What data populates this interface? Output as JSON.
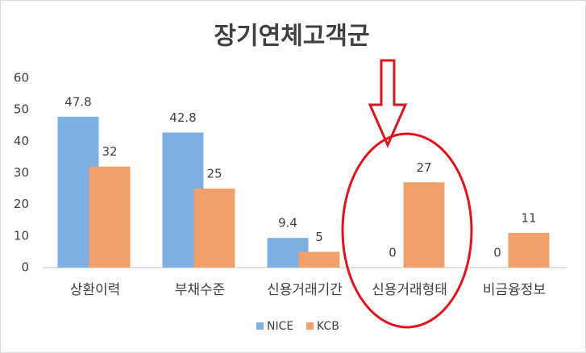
{
  "chart_data": {
    "type": "bar",
    "title": "장기연체고객군",
    "categories": [
      "상환이력",
      "부채수준",
      "신용거래기간",
      "신용거래형태",
      "비금융정보"
    ],
    "series": [
      {
        "name": "NICE",
        "color": "#7eb0e3",
        "values": [
          47.8,
          42.8,
          9.4,
          0,
          null
        ]
      },
      {
        "name": "KCB",
        "color": "#f0a06a",
        "values": [
          32,
          25,
          5,
          27,
          11
        ]
      }
    ],
    "nice_zero_label_on_last": 0,
    "ylim": [
      0,
      60
    ],
    "yticks": [
      0,
      10,
      20,
      30,
      40,
      50,
      60
    ],
    "grid": false,
    "legend": "bottom"
  }
}
